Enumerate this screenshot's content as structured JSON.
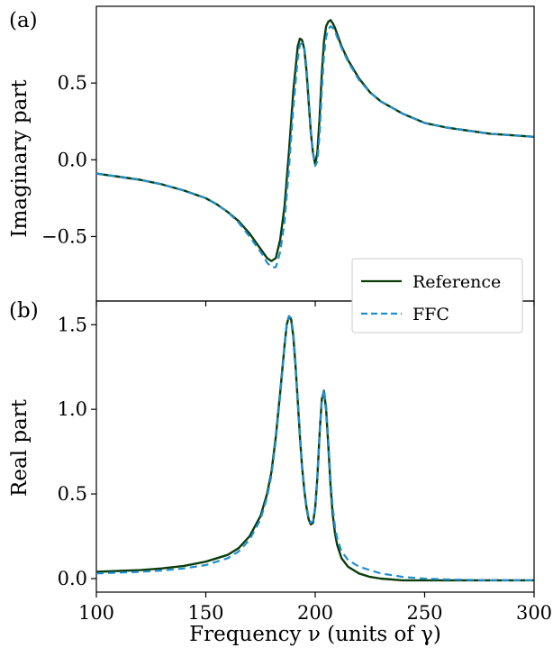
{
  "figure": {
    "xlabel": "Frequency ν (units of γ)"
  },
  "legend": {
    "entries": [
      {
        "label": "Reference",
        "color": "#0b3d0b",
        "style": "solid"
      },
      {
        "label": "FFC",
        "color": "#1f8fd0",
        "style": "dashed"
      }
    ],
    "placement": "bottom-right of panel (a)"
  },
  "chart_data": [
    {
      "type": "line",
      "panel_label": "(a)",
      "ylabel": "Imaginary part",
      "xlabel": "",
      "xlim": [
        100,
        300
      ],
      "ylim": [
        -0.92,
        1.0
      ],
      "xticks": [
        100,
        150,
        200,
        250,
        300
      ],
      "yticks": [
        -0.5,
        0.0,
        0.5
      ],
      "ytick_labels": [
        "−0.5",
        "0.0",
        "0.5"
      ],
      "grid": false,
      "series": [
        {
          "name": "Reference",
          "color": "#0b3d0b",
          "dash": "solid",
          "x": [
            100,
            110,
            120,
            130,
            140,
            150,
            155,
            160,
            165,
            170,
            173,
            176,
            178,
            180,
            182,
            184,
            186,
            188,
            190,
            192,
            193,
            194,
            195,
            196,
            197,
            198,
            199,
            200,
            201,
            202,
            203,
            204,
            205,
            206,
            207,
            208,
            209,
            210,
            212,
            215,
            220,
            225,
            230,
            240,
            250,
            260,
            270,
            280,
            290,
            300
          ],
          "y": [
            -0.09,
            -0.11,
            -0.13,
            -0.16,
            -0.2,
            -0.25,
            -0.29,
            -0.34,
            -0.4,
            -0.48,
            -0.54,
            -0.6,
            -0.64,
            -0.66,
            -0.64,
            -0.52,
            -0.3,
            0.05,
            0.45,
            0.74,
            0.79,
            0.78,
            0.72,
            0.58,
            0.38,
            0.18,
            0.04,
            -0.03,
            0.05,
            0.28,
            0.56,
            0.77,
            0.87,
            0.9,
            0.91,
            0.89,
            0.86,
            0.82,
            0.74,
            0.65,
            0.53,
            0.44,
            0.38,
            0.3,
            0.24,
            0.21,
            0.19,
            0.17,
            0.16,
            0.15
          ]
        },
        {
          "name": "FFC",
          "color": "#1f8fd0",
          "dash": "dashed",
          "x": [
            100,
            110,
            120,
            130,
            140,
            150,
            155,
            160,
            165,
            170,
            173,
            176,
            178,
            180,
            182,
            184,
            186,
            188,
            190,
            192,
            193,
            194,
            195,
            196,
            197,
            198,
            199,
            200,
            201,
            202,
            203,
            204,
            205,
            206,
            207,
            208,
            209,
            210,
            212,
            215,
            220,
            225,
            230,
            240,
            250,
            260,
            270,
            280,
            290,
            300
          ],
          "y": [
            -0.09,
            -0.11,
            -0.13,
            -0.16,
            -0.2,
            -0.25,
            -0.29,
            -0.34,
            -0.41,
            -0.5,
            -0.56,
            -0.62,
            -0.67,
            -0.7,
            -0.7,
            -0.6,
            -0.4,
            -0.06,
            0.34,
            0.66,
            0.75,
            0.76,
            0.73,
            0.61,
            0.42,
            0.2,
            0.04,
            -0.04,
            -0.01,
            0.17,
            0.45,
            0.68,
            0.8,
            0.85,
            0.87,
            0.86,
            0.84,
            0.8,
            0.73,
            0.64,
            0.52,
            0.44,
            0.38,
            0.3,
            0.24,
            0.21,
            0.19,
            0.17,
            0.16,
            0.15
          ]
        }
      ]
    },
    {
      "type": "line",
      "panel_label": "(b)",
      "ylabel": "Real part",
      "xlabel": "Frequency ν (units of γ)",
      "xlim": [
        100,
        300
      ],
      "ylim": [
        -0.08,
        1.64
      ],
      "xticks": [
        100,
        150,
        200,
        250,
        300
      ],
      "yticks": [
        0.0,
        0.5,
        1.0,
        1.5
      ],
      "ytick_labels": [
        "0.0",
        "0.5",
        "1.0",
        "1.5"
      ],
      "xtick_labels": [
        "100",
        "150",
        "200",
        "250",
        "300"
      ],
      "grid": false,
      "series": [
        {
          "name": "Reference",
          "color": "#0b3d0b",
          "dash": "solid",
          "x": [
            100,
            110,
            120,
            130,
            140,
            150,
            160,
            165,
            170,
            175,
            178,
            180,
            182,
            184,
            186,
            187,
            188,
            189,
            190,
            191,
            192,
            193,
            194,
            195,
            196,
            197,
            198,
            199,
            200,
            201,
            202,
            203,
            204,
            205,
            206,
            207,
            208,
            209,
            210,
            212,
            215,
            220,
            225,
            230,
            240,
            250,
            260,
            280,
            300
          ],
          "y": [
            0.04,
            0.045,
            0.05,
            0.06,
            0.075,
            0.1,
            0.14,
            0.18,
            0.25,
            0.37,
            0.5,
            0.63,
            0.84,
            1.1,
            1.38,
            1.5,
            1.55,
            1.53,
            1.43,
            1.26,
            1.05,
            0.84,
            0.66,
            0.52,
            0.42,
            0.35,
            0.32,
            0.33,
            0.42,
            0.6,
            0.86,
            1.06,
            1.11,
            1.0,
            0.78,
            0.55,
            0.38,
            0.27,
            0.2,
            0.12,
            0.07,
            0.03,
            0.01,
            0.0,
            -0.01,
            -0.01,
            -0.01,
            -0.01,
            -0.01
          ]
        },
        {
          "name": "FFC",
          "color": "#1f8fd0",
          "dash": "dashed",
          "x": [
            100,
            110,
            120,
            130,
            140,
            150,
            160,
            165,
            170,
            175,
            178,
            180,
            182,
            184,
            186,
            187,
            188,
            189,
            190,
            191,
            192,
            193,
            194,
            195,
            196,
            197,
            198,
            199,
            200,
            201,
            202,
            203,
            204,
            205,
            206,
            207,
            208,
            209,
            210,
            212,
            215,
            220,
            225,
            230,
            240,
            250,
            260,
            280,
            300
          ],
          "y": [
            0.03,
            0.035,
            0.04,
            0.048,
            0.06,
            0.08,
            0.12,
            0.16,
            0.23,
            0.35,
            0.48,
            0.61,
            0.82,
            1.08,
            1.37,
            1.5,
            1.55,
            1.54,
            1.45,
            1.28,
            1.07,
            0.86,
            0.67,
            0.53,
            0.43,
            0.36,
            0.33,
            0.34,
            0.43,
            0.61,
            0.86,
            1.05,
            1.12,
            1.02,
            0.81,
            0.59,
            0.42,
            0.31,
            0.24,
            0.16,
            0.11,
            0.07,
            0.05,
            0.03,
            0.01,
            0.0,
            -0.005,
            -0.01,
            -0.01
          ]
        }
      ]
    }
  ]
}
